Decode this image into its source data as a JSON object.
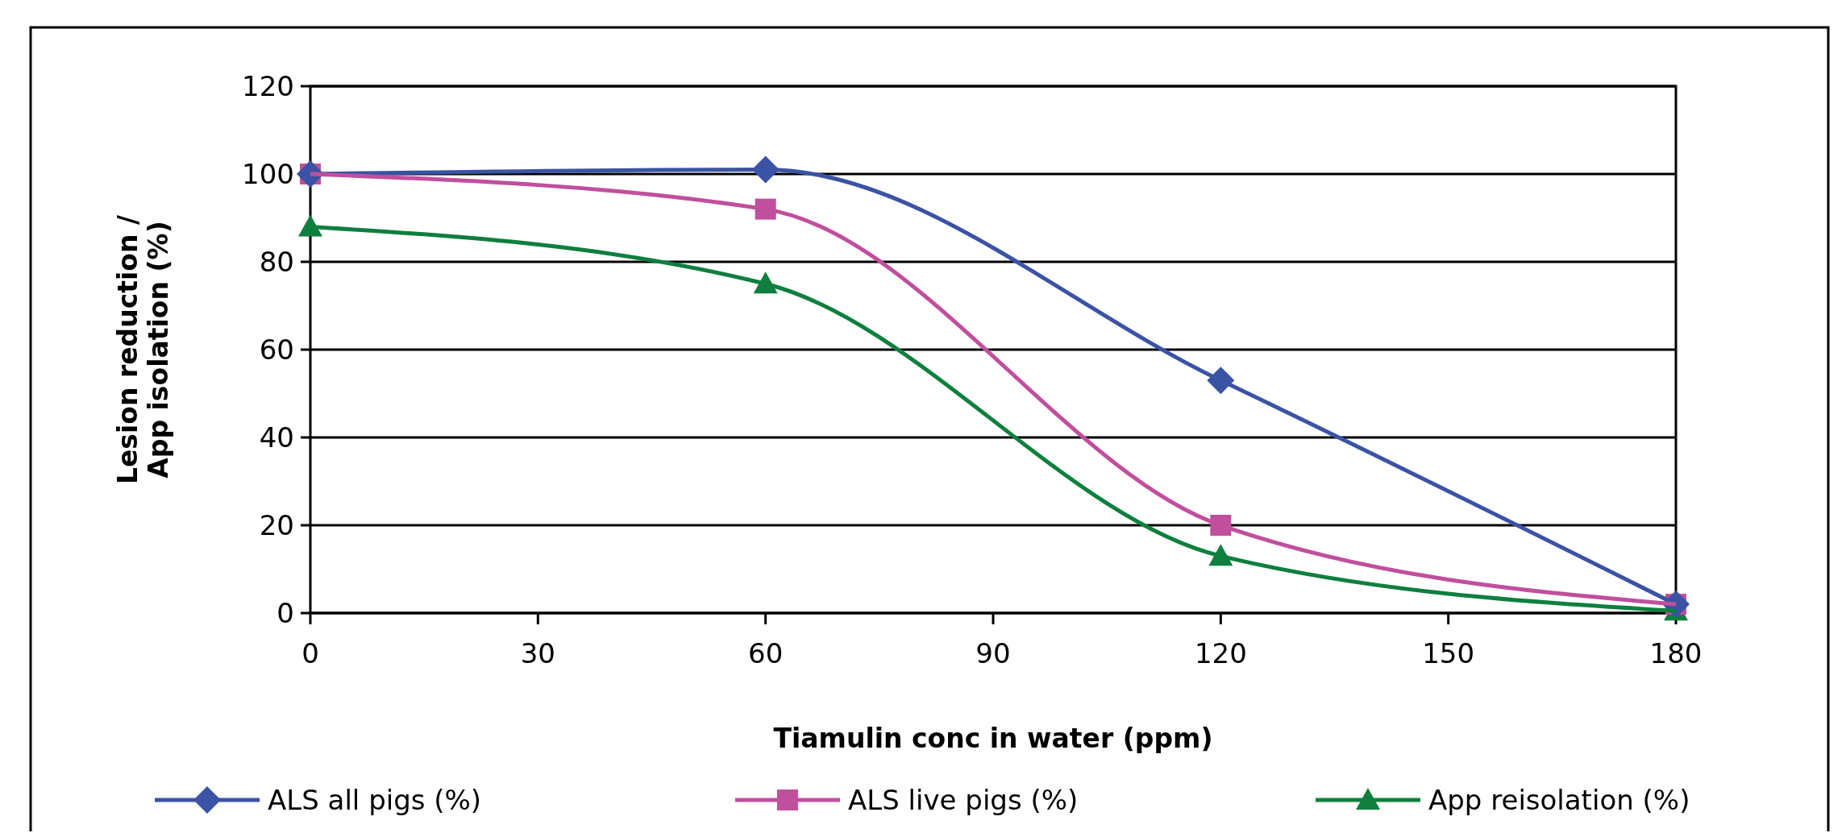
{
  "chart_data": {
    "type": "line",
    "xlabel": "Tiamulin conc in water (ppm)",
    "ylabel": "Lesion reduction / App isolation (%)",
    "x": [
      0,
      60,
      120,
      180
    ],
    "series": [
      {
        "name": "ALS all pigs (%)",
        "color": "#3a53a4",
        "values": [
          100,
          101,
          53,
          2
        ],
        "marker": "diamond"
      },
      {
        "name": "ALS live pigs (%)",
        "color": "#c04f9e",
        "values": [
          100,
          92,
          20,
          2
        ],
        "marker": "square"
      },
      {
        "name": "App reisolation (%)",
        "color": "#0e7f3e",
        "values": [
          88,
          75,
          13,
          0.5
        ],
        "marker": "triangle"
      }
    ],
    "xlim": [
      0,
      180
    ],
    "xticks": [
      0,
      30,
      60,
      90,
      120,
      150,
      180
    ],
    "ylim": [
      0,
      120
    ],
    "yticks": [
      0,
      20,
      40,
      60,
      80,
      100,
      120
    ],
    "grid": "y",
    "legend": "bottom",
    "line_style": "solid"
  }
}
